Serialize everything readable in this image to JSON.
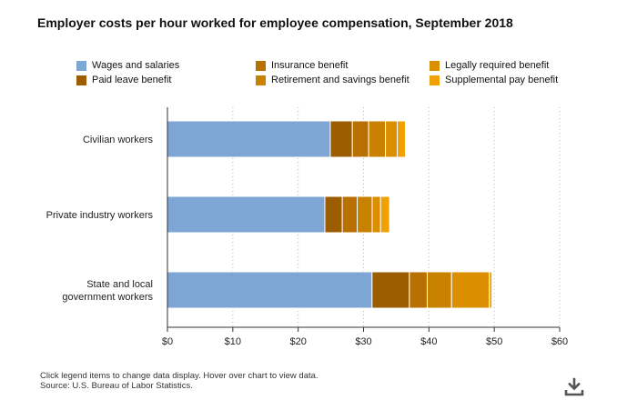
{
  "page": {
    "title": "Employer costs per hour worked for employee compensation, September 2018",
    "footnote_line1": "Click legend items to change data display. Hover over chart to view data.",
    "footnote_line2": "Source: U.S. Bureau of Labor Statistics."
  },
  "download": {
    "icon": "download-icon"
  },
  "chart_data": {
    "type": "bar",
    "orientation": "horizontal",
    "stacked": true,
    "title": "Employer costs per hour worked for employee compensation, September 2018",
    "xlabel": "",
    "ylabel": "",
    "xlim": [
      0,
      60
    ],
    "x_ticks": [
      0,
      10,
      20,
      30,
      40,
      50,
      60
    ],
    "x_tick_labels": [
      "$0",
      "$10",
      "$20",
      "$30",
      "$40",
      "$50",
      "$60"
    ],
    "grid": true,
    "legend_position": "top",
    "categories": [
      "Civilian workers",
      "Private industry workers",
      "State and local government workers"
    ],
    "category_label_lines": [
      [
        "Civilian workers"
      ],
      [
        "Private industry workers"
      ],
      [
        "State and local",
        "government workers"
      ]
    ],
    "series": [
      {
        "name": "Wages and salaries",
        "color": "#7ea6d4",
        "values": [
          24.91,
          24.08,
          31.3
        ]
      },
      {
        "name": "Paid leave benefit",
        "color": "#9b5d00",
        "values": [
          3.38,
          2.67,
          5.71
        ]
      },
      {
        "name": "Insurance benefit",
        "color": "#b87000",
        "values": [
          2.49,
          2.28,
          2.73
        ]
      },
      {
        "name": "Retirement and savings benefit",
        "color": "#c98200",
        "values": [
          2.57,
          2.29,
          3.73
        ]
      },
      {
        "name": "Legally required benefit",
        "color": "#db8f00",
        "values": [
          1.8,
          1.29,
          5.77
        ]
      },
      {
        "name": "Supplemental pay benefit",
        "color": "#f0a000",
        "values": [
          1.25,
          1.37,
          0.4
        ]
      }
    ],
    "legend_order": [
      "Wages and salaries",
      "Insurance benefit",
      "Legally required benefit",
      "Paid leave benefit",
      "Retirement and savings benefit",
      "Supplemental pay benefit"
    ]
  }
}
